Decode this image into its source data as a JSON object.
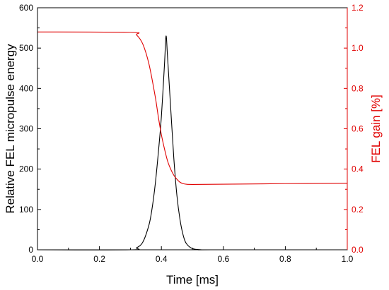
{
  "chart_data": {
    "type": "line",
    "xlabel": "Time [ms]",
    "ylabel_left": "Relative FEL micropulse energy",
    "ylabel_right": "FEL gain [%]",
    "xlim": [
      0.0,
      1.0
    ],
    "ylim_left": [
      0,
      600
    ],
    "ylim_right": [
      0.0,
      1.2
    ],
    "x_ticks": [
      "0.0",
      "0.2",
      "0.4",
      "0.6",
      "0.8",
      "1.0"
    ],
    "y_left_ticks": [
      "0",
      "100",
      "200",
      "300",
      "400",
      "500",
      "600"
    ],
    "y_right_ticks": [
      "0.0",
      "0.2",
      "0.4",
      "0.6",
      "0.8",
      "1.0",
      "1.2"
    ],
    "grid": false,
    "colors": {
      "energy": "#000000",
      "gain": "#e00000",
      "axis_left": "#000000",
      "axis_right": "#e00000"
    },
    "series": [
      {
        "axis": "left",
        "color": "#000000",
        "x": [
          0.0,
          0.3,
          0.32,
          0.34,
          0.36,
          0.37,
          0.38,
          0.39,
          0.4,
          0.41,
          0.415,
          0.42,
          0.43,
          0.44,
          0.45,
          0.46,
          0.47,
          0.48,
          0.5,
          0.53,
          0.56,
          1.0
        ],
        "y": [
          0,
          0,
          5,
          19,
          62,
          103,
          162,
          240,
          331,
          460,
          530,
          476,
          351,
          228,
          135,
          75,
          37,
          16,
          3,
          0,
          0,
          0
        ]
      },
      {
        "axis": "right",
        "color": "#e00000",
        "x": [
          0.0,
          0.3,
          0.32,
          0.34,
          0.36,
          0.38,
          0.39,
          0.4,
          0.41,
          0.42,
          0.43,
          0.44,
          0.45,
          0.46,
          0.47,
          0.48,
          0.5,
          0.6,
          0.8,
          1.0
        ],
        "y": [
          1.08,
          1.078,
          1.065,
          1.02,
          0.92,
          0.76,
          0.66,
          0.57,
          0.5,
          0.44,
          0.4,
          0.37,
          0.35,
          0.335,
          0.328,
          0.325,
          0.324,
          0.325,
          0.328,
          0.33
        ]
      }
    ]
  }
}
